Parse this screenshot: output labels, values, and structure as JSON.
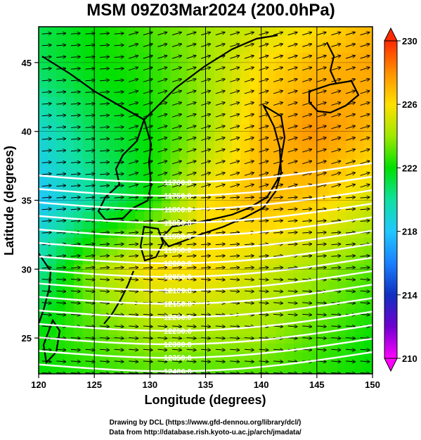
{
  "chart_data": {
    "type": "heatmap",
    "title": "MSM 09Z03Mar2024 (200.0hPa)",
    "xlabel": "Longitude (degrees)",
    "ylabel": "Latitude  (degrees)",
    "xlim": [
      120,
      150
    ],
    "ylim": [
      22.4,
      47.6
    ],
    "xticks": [
      "120",
      "125",
      "130",
      "135",
      "140",
      "145",
      "150"
    ],
    "yticks": [
      "25",
      "30",
      "35",
      "40",
      "45"
    ],
    "colorbar": {
      "range": [
        210,
        230
      ],
      "ticks": [
        "210",
        "214",
        "218",
        "222",
        "226",
        "230"
      ],
      "colors": [
        "#ff00ff",
        "#1030c0",
        "#20c8ff",
        "#00e000",
        "#ffe000",
        "#ff2a00"
      ]
    },
    "field_samples": {
      "lon": [
        120,
        125,
        130,
        135,
        140,
        145,
        150
      ],
      "lat": [
        47.6,
        45,
        40,
        35,
        30,
        25,
        22.4
      ],
      "values": [
        [
          221,
          222,
          223,
          224,
          225,
          226,
          227
        ],
        [
          221,
          222,
          222.5,
          224,
          226,
          227,
          227.5
        ],
        [
          219,
          221,
          222,
          224,
          227,
          228,
          227
        ],
        [
          218,
          220,
          222,
          226,
          227,
          226.5,
          225
        ],
        [
          220,
          224,
          226,
          226,
          225,
          224,
          223
        ],
        [
          222,
          223,
          224,
          224,
          224,
          223,
          222
        ],
        [
          222,
          222.5,
          223,
          223,
          223,
          222.5,
          222
        ]
      ]
    },
    "wind_direction": "westerly",
    "contours": {
      "color": "#ffffff",
      "labels": [
        "11700.0",
        "11750.0",
        "11800.0",
        "11850.0",
        "11900.0",
        "11950.0",
        "12000.0",
        "12050.0",
        "12100.0",
        "12150.0",
        "12200.0",
        "12250.0",
        "12300.0",
        "12350.0",
        "12400.0"
      ]
    },
    "legend": "colorbar-right"
  },
  "credits": {
    "line1": "Drawing by DCL (https://www.gfd-dennou.org/library/dcl/)",
    "line2": "Data from http://database.rish.kyoto-u.ac.jp/arch/jmadata/"
  }
}
